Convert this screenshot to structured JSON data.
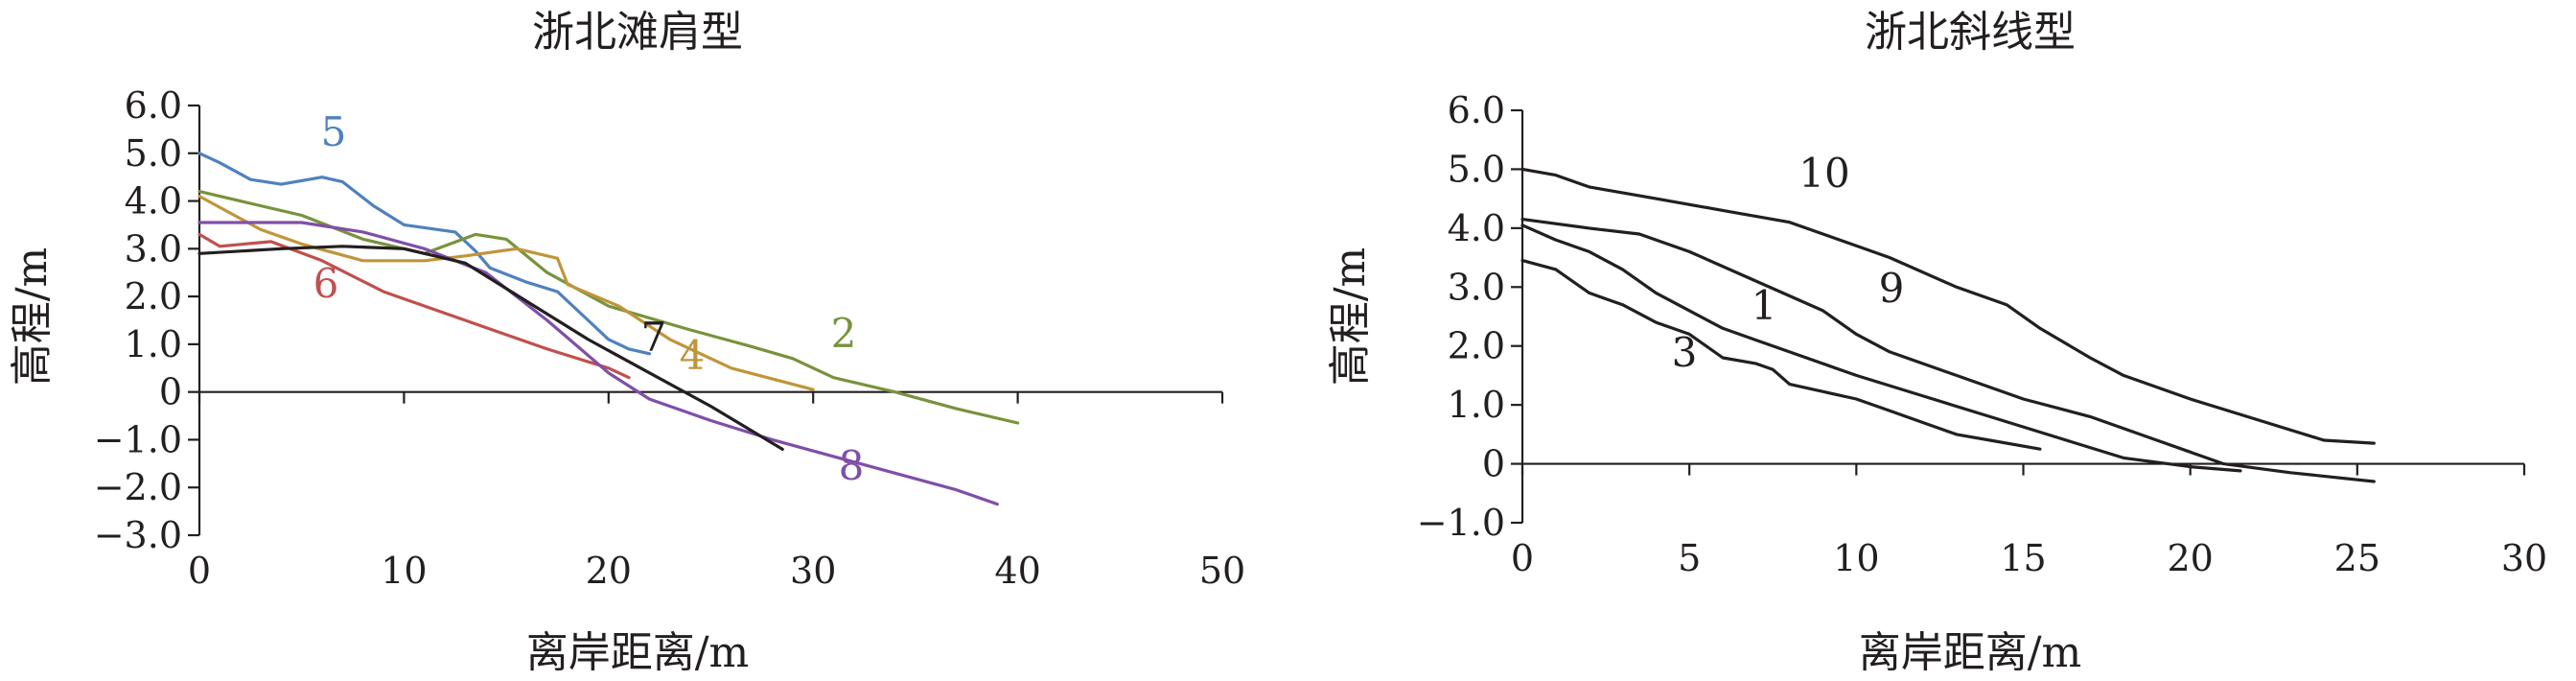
{
  "chart_data": [
    {
      "type": "line",
      "title": "浙北滩肩型",
      "xlabel": "离岸距离/m",
      "ylabel": "高程/m",
      "xlim": [
        0,
        50
      ],
      "ylim": [
        -3,
        6
      ],
      "xticks": [
        "0",
        "10",
        "20",
        "30",
        "40",
        "50"
      ],
      "yticks": [
        "6.0",
        "5.0",
        "4.0",
        "3.0",
        "2.0",
        "1.0",
        "0",
        "−1.0",
        "−2.0",
        "−3.0"
      ],
      "grid": false,
      "series": [
        {
          "name": "5",
          "color": "#4f81bd",
          "x": [
            0,
            1,
            2.5,
            4,
            6,
            7,
            8.5,
            10,
            12.5,
            13.5,
            14.2,
            16,
            17.5,
            19,
            20,
            21,
            22
          ],
          "y": [
            5.0,
            4.8,
            4.45,
            4.35,
            4.5,
            4.4,
            3.9,
            3.5,
            3.35,
            2.95,
            2.6,
            2.3,
            2.1,
            1.5,
            1.1,
            0.9,
            0.8
          ]
        },
        {
          "name": "2",
          "color": "#77933c",
          "x": [
            0,
            2,
            5,
            8,
            11,
            13.5,
            15,
            17,
            20,
            24,
            27,
            29,
            31,
            34,
            37,
            40
          ],
          "y": [
            4.2,
            4.0,
            3.7,
            3.2,
            2.9,
            3.3,
            3.2,
            2.5,
            1.8,
            1.3,
            0.95,
            0.7,
            0.3,
            0.0,
            -0.35,
            -0.65
          ]
        },
        {
          "name": "4",
          "color": "#c0953a",
          "x": [
            0,
            3,
            5,
            8,
            11,
            13,
            15.5,
            17.5,
            18,
            20.5,
            23,
            26,
            30
          ],
          "y": [
            4.1,
            3.4,
            3.1,
            2.75,
            2.75,
            2.85,
            3.0,
            2.8,
            2.25,
            1.8,
            1.1,
            0.5,
            0.05
          ]
        },
        {
          "name": "6",
          "color": "#c0504d",
          "x": [
            0,
            1,
            3.5,
            6,
            9,
            13,
            17,
            20,
            21
          ],
          "y": [
            3.3,
            3.05,
            3.15,
            2.75,
            2.1,
            1.5,
            0.9,
            0.5,
            0.3
          ]
        },
        {
          "name": "8",
          "color": "#7f4fa8",
          "x": [
            0,
            5,
            8,
            11,
            14,
            17,
            20,
            22,
            25,
            28,
            31,
            34,
            37,
            39
          ],
          "y": [
            3.55,
            3.55,
            3.35,
            3.0,
            2.5,
            1.5,
            0.4,
            -0.15,
            -0.6,
            -1.0,
            -1.35,
            -1.7,
            -2.05,
            -2.35
          ]
        },
        {
          "name": "7",
          "color": "#231f20",
          "x": [
            0,
            4,
            7,
            10,
            13,
            16,
            19,
            22,
            25,
            28.5
          ],
          "y": [
            2.9,
            3.0,
            3.05,
            3.0,
            2.7,
            1.9,
            1.1,
            0.4,
            -0.3,
            -1.2
          ]
        }
      ]
    },
    {
      "type": "line",
      "title": "浙北斜线型",
      "xlabel": "离岸距离/m",
      "ylabel": "高程/m",
      "xlim": [
        0,
        30
      ],
      "ylim": [
        -1,
        6
      ],
      "xticks": [
        "0",
        "5",
        "10",
        "15",
        "20",
        "25",
        "30"
      ],
      "yticks": [
        "6.0",
        "5.0",
        "4.0",
        "3.0",
        "2.0",
        "1.0",
        "0",
        "−1.0"
      ],
      "grid": false,
      "series": [
        {
          "name": "10",
          "color": "#231f20",
          "x": [
            0,
            1,
            2,
            4,
            6,
            8,
            10,
            11,
            13,
            14.5,
            15.5,
            17,
            18,
            20,
            22,
            24,
            25.5
          ],
          "y": [
            5.0,
            4.9,
            4.7,
            4.5,
            4.3,
            4.1,
            3.7,
            3.5,
            3.0,
            2.7,
            2.3,
            1.8,
            1.5,
            1.1,
            0.75,
            0.4,
            0.35
          ]
        },
        {
          "name": "9",
          "color": "#231f20",
          "x": [
            0,
            2,
            3.5,
            5,
            7,
            9,
            10,
            11,
            13,
            15,
            17,
            19,
            21,
            23,
            25.5
          ],
          "y": [
            4.15,
            4.0,
            3.9,
            3.6,
            3.1,
            2.6,
            2.2,
            1.9,
            1.5,
            1.1,
            0.8,
            0.4,
            0.0,
            -0.15,
            -0.3
          ]
        },
        {
          "name": "1",
          "color": "#231f20",
          "x": [
            0,
            1,
            2,
            3,
            4,
            5,
            6,
            7,
            8,
            10,
            12,
            14,
            16,
            18,
            20,
            21.5
          ],
          "y": [
            4.05,
            3.8,
            3.6,
            3.3,
            2.9,
            2.6,
            2.3,
            2.1,
            1.9,
            1.5,
            1.15,
            0.8,
            0.45,
            0.1,
            -0.05,
            -0.12
          ]
        },
        {
          "name": "3",
          "color": "#231f20",
          "x": [
            0,
            1,
            2,
            2.5,
            3,
            4,
            4.5,
            5,
            6,
            7,
            7.5,
            8,
            10,
            11,
            12,
            13,
            14,
            15.5
          ],
          "y": [
            3.45,
            3.3,
            2.9,
            2.8,
            2.7,
            2.4,
            2.3,
            2.2,
            1.8,
            1.7,
            1.6,
            1.35,
            1.1,
            0.9,
            0.7,
            0.5,
            0.4,
            0.25
          ]
        }
      ]
    }
  ]
}
